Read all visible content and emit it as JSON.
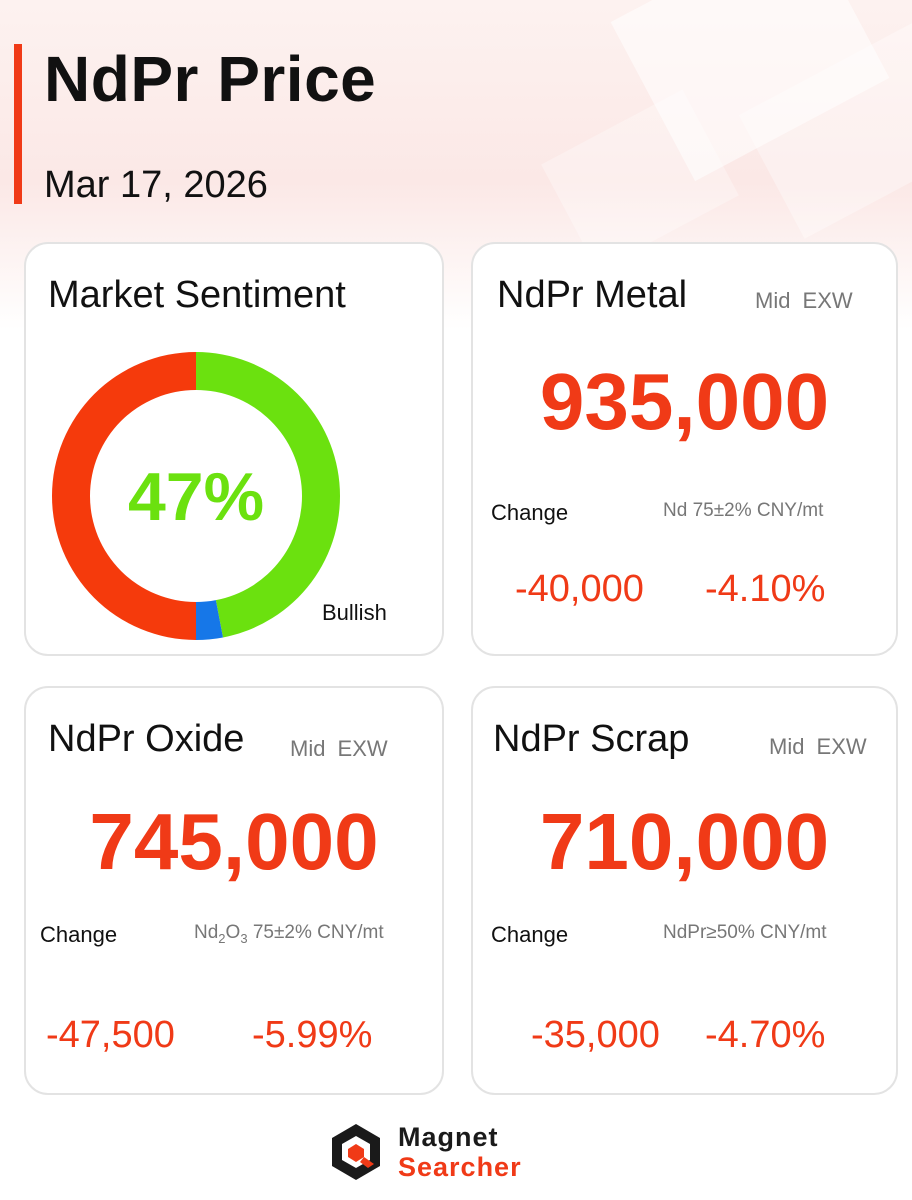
{
  "header": {
    "title": "NdPr Price",
    "date": "Mar 17, 2026"
  },
  "sentiment": {
    "title": "Market Sentiment",
    "percent_label": "47%",
    "bullish_label": "Bullish",
    "segments": [
      {
        "name": "bullish",
        "value": 47,
        "color": "#6be10f"
      },
      {
        "name": "neutral",
        "value": 3,
        "color": "#1677e8"
      },
      {
        "name": "bearish",
        "value": 50,
        "color": "#f53a0c"
      }
    ]
  },
  "metal": {
    "title": "NdPr Metal",
    "tag": "Mid EXW",
    "price": "935,000",
    "change_label": "Change",
    "spec": "Nd 75±2% CNY/mt",
    "change_abs": "-40,000",
    "change_pct": "-4.10%"
  },
  "oxide": {
    "title": "NdPr Oxide",
    "tag": "Mid EXW",
    "price": "745,000",
    "change_label": "Change",
    "spec_formula_prefix": "Nd",
    "spec_formula_sub1": "2",
    "spec_formula_mid": "O",
    "spec_formula_sub2": "3",
    "spec_rest": "75±2% CNY/mt",
    "change_abs": "-47,500",
    "change_pct": "-5.99%"
  },
  "scrap": {
    "title": "NdPr Scrap",
    "tag": "Mid EXW",
    "price": "710,000",
    "change_label": "Change",
    "spec": "NdPr≥50% CNY/mt",
    "change_abs": "-35,000",
    "change_pct": "-4.70%"
  },
  "logo": {
    "line1": "Magnet",
    "line2": "Searcher"
  },
  "colors": {
    "accent": "#f03a17",
    "bullish": "#6be10f",
    "neutral": "#1677e8",
    "bearish": "#f53a0c"
  }
}
